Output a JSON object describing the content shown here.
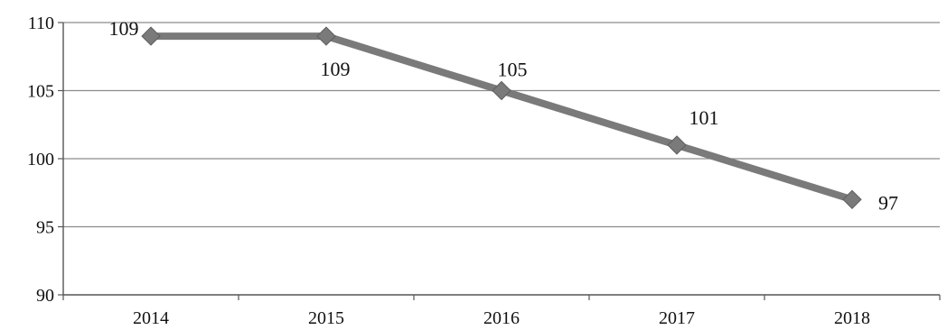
{
  "chart_data": {
    "type": "line",
    "title": "",
    "xlabel": "",
    "ylabel": "",
    "categories": [
      "2014",
      "2015",
      "2016",
      "2017",
      "2018"
    ],
    "series": [
      {
        "values": [
          109,
          109,
          105,
          101,
          97
        ]
      }
    ],
    "data_labels": [
      "109",
      "109",
      "105",
      "101",
      "97"
    ],
    "y_ticks": [
      "90",
      "95",
      "100",
      "105",
      "110"
    ],
    "ylim": [
      90,
      110
    ],
    "grid": true,
    "legend": "none",
    "colors": {
      "line": "#7a7a7a",
      "marker": "#7a7a7a",
      "grid": "#8c8c8c",
      "axis": "#555555"
    }
  }
}
